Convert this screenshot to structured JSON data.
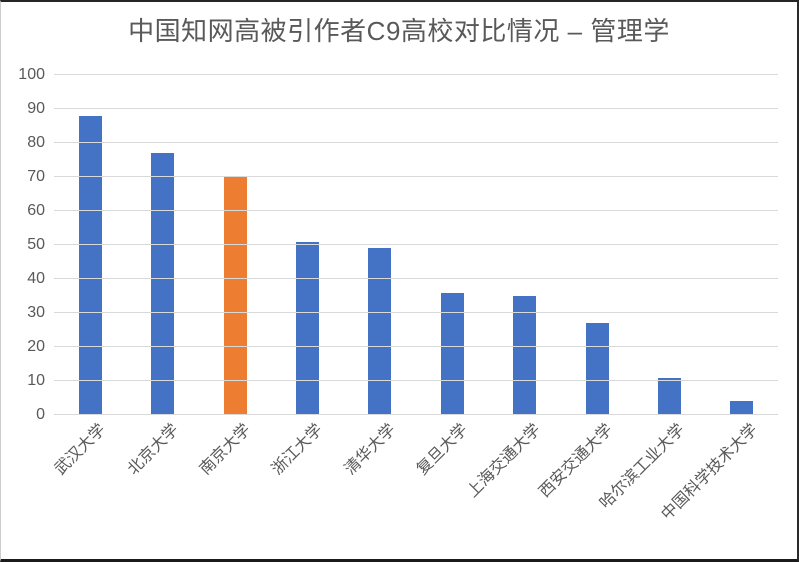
{
  "chart_data": {
    "type": "bar",
    "title": "中国知网高被引作者C9高校对比情况 – 管理学",
    "categories": [
      "武汉大学",
      "北京大学",
      "南京大学",
      "浙江大学",
      "清华大学",
      "复旦大学",
      "上海交通大学",
      "西安交通大学",
      "哈尔滨工业大学",
      "中国科学技术大学"
    ],
    "values": [
      88,
      77,
      70,
      51,
      49,
      36,
      35,
      27,
      11,
      4
    ],
    "highlighted_category": "南京大学",
    "highlight_index": 2,
    "xlabel": "",
    "ylabel": "",
    "ylim": [
      0,
      100
    ],
    "yticks": [
      0,
      10,
      20,
      30,
      40,
      50,
      60,
      70,
      80,
      90,
      100
    ],
    "grid": true,
    "legend": false,
    "colors": {
      "bar": "#4472C4",
      "highlight": "#ED7D31",
      "gridline": "#D9D9D9",
      "axis_label": "#595959",
      "title": "#595959"
    }
  }
}
